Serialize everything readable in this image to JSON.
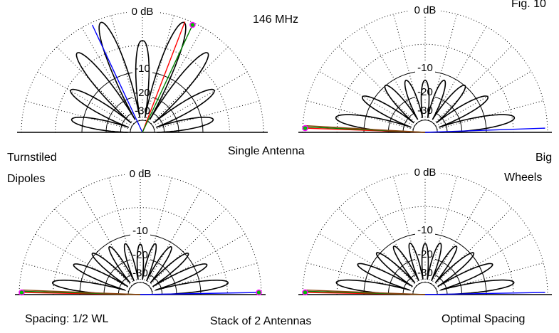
{
  "figure_label": "Fig. 10",
  "frequency": "146 MHz",
  "row_labels": {
    "single": "Single Antenna",
    "stack": "Stack of 2 Antennas"
  },
  "side_labels": {
    "left_line1": "Turnstiled",
    "left_line2": "Dipoles",
    "right_line1": "Big",
    "right_line2": "Wheels"
  },
  "bottom_labels": {
    "left": "Spacing: 1/2 WL",
    "right": "Optimal Spacing"
  },
  "ring_labels": [
    "0 dB",
    "-10",
    "-20",
    "-30"
  ],
  "colors": {
    "pattern": "#000000",
    "grid": "#000000",
    "blue": "#0000ff",
    "red": "#ff0000",
    "green": "#008000",
    "brown": "#8b4513",
    "marker": "#ff00ff",
    "marker_fill": "#00c000"
  },
  "panels": [
    {
      "id": "tl",
      "lobes": 9,
      "main_lobe_elev_deg": 65
    },
    {
      "id": "tr",
      "lobes": 9,
      "main_lobe_elev_deg": 2
    },
    {
      "id": "bl",
      "lobes": 11,
      "main_lobe_elev_deg": 1
    },
    {
      "id": "br",
      "lobes": 11,
      "main_lobe_elev_deg": 1
    }
  ]
}
